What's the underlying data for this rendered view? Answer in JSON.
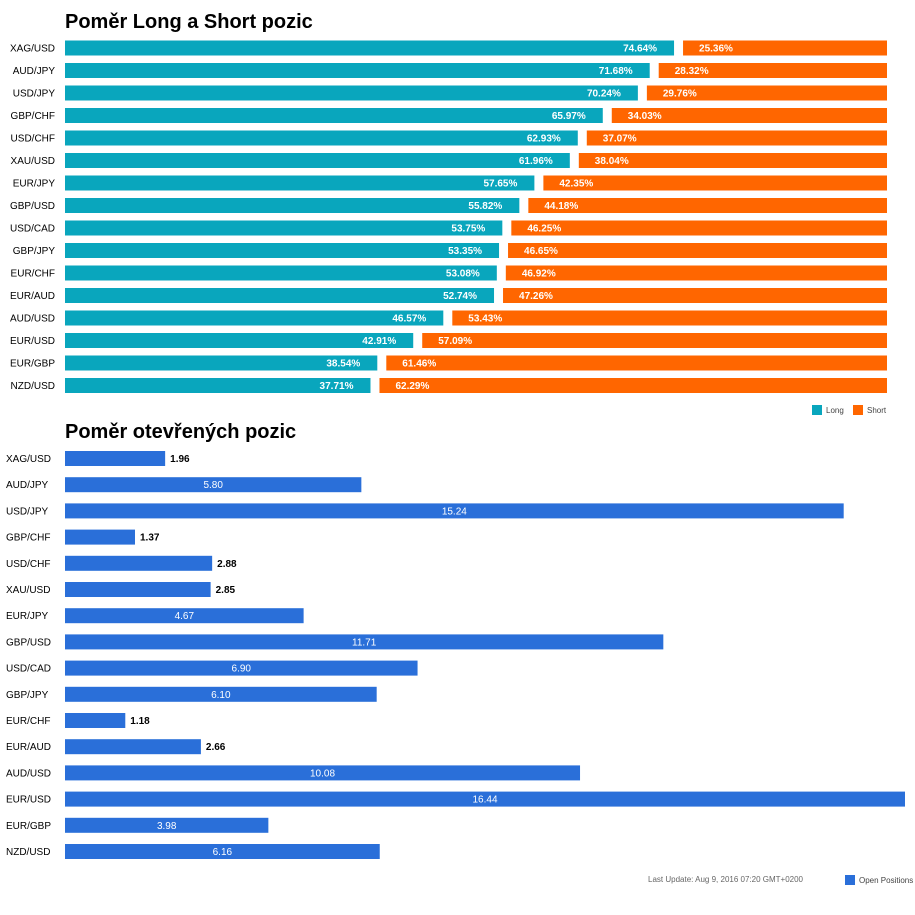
{
  "colors": {
    "long": "#09A6BD",
    "short": "#FF6600",
    "open": "#2A6FD9"
  },
  "chart_data": [
    {
      "type": "bar",
      "orientation": "horizontal",
      "stacked": true,
      "title": "Poměr Long a Short pozic",
      "categories": [
        "XAG/USD",
        "AUD/JPY",
        "USD/JPY",
        "GBP/CHF",
        "USD/CHF",
        "XAU/USD",
        "EUR/JPY",
        "GBP/USD",
        "USD/CAD",
        "GBP/JPY",
        "EUR/CHF",
        "EUR/AUD",
        "AUD/USD",
        "EUR/USD",
        "EUR/GBP",
        "NZD/USD"
      ],
      "series": [
        {
          "name": "Long",
          "color": "#09A6BD",
          "values": [
            74.64,
            71.68,
            70.24,
            65.97,
            62.93,
            61.96,
            57.65,
            55.82,
            53.75,
            53.35,
            53.08,
            52.74,
            46.57,
            42.91,
            38.54,
            37.71
          ],
          "labels": [
            "74.64%",
            "71.68%",
            "70.24%",
            "65.97%",
            "62.93%",
            "61.96%",
            "57.65%",
            "55.82%",
            "53.75%",
            "53.35%",
            "53.08%",
            "52.74%",
            "46.57%",
            "42.91%",
            "38.54%",
            "37.71%"
          ]
        },
        {
          "name": "Short",
          "color": "#FF6600",
          "values": [
            25.36,
            28.32,
            29.76,
            34.03,
            37.07,
            38.04,
            42.35,
            44.18,
            46.25,
            46.65,
            46.92,
            47.26,
            53.43,
            57.09,
            61.46,
            62.29
          ],
          "labels": [
            "25.36%",
            "28.32%",
            "29.76%",
            "34.03%",
            "37.07%",
            "38.04%",
            "42.35%",
            "44.18%",
            "46.25%",
            "46.65%",
            "46.92%",
            "47.26%",
            "53.43%",
            "57.09%",
            "61.46%",
            "62.29%"
          ]
        }
      ],
      "xlim": [
        0,
        100
      ],
      "legend": "bottom-right",
      "grid": false
    },
    {
      "type": "bar",
      "orientation": "horizontal",
      "title": "Poměr otevřených pozic",
      "categories": [
        "XAG/USD",
        "AUD/JPY",
        "USD/JPY",
        "GBP/CHF",
        "USD/CHF",
        "XAU/USD",
        "EUR/JPY",
        "GBP/USD",
        "USD/CAD",
        "GBP/JPY",
        "EUR/CHF",
        "EUR/AUD",
        "AUD/USD",
        "EUR/USD",
        "EUR/GBP",
        "NZD/USD"
      ],
      "series": [
        {
          "name": "Open Positions",
          "color": "#2A6FD9",
          "values": [
            1.96,
            5.8,
            15.24,
            1.37,
            2.88,
            2.85,
            4.67,
            11.71,
            6.9,
            6.1,
            1.18,
            2.66,
            10.08,
            16.44,
            3.98,
            6.16
          ],
          "labels": [
            "1.96",
            "5.80",
            "15.24",
            "1.37",
            "2.88",
            "2.85",
            "4.67",
            "11.71",
            "6.90",
            "6.10",
            "1.18",
            "2.66",
            "10.08",
            "16.44",
            "3.98",
            "6.16"
          ]
        }
      ],
      "xlim": [
        0,
        16.44
      ],
      "legend": "bottom-right",
      "grid": false
    }
  ],
  "footer": {
    "last_update": "Last Update: Aug 9, 2016 07:20 GMT+0200"
  }
}
